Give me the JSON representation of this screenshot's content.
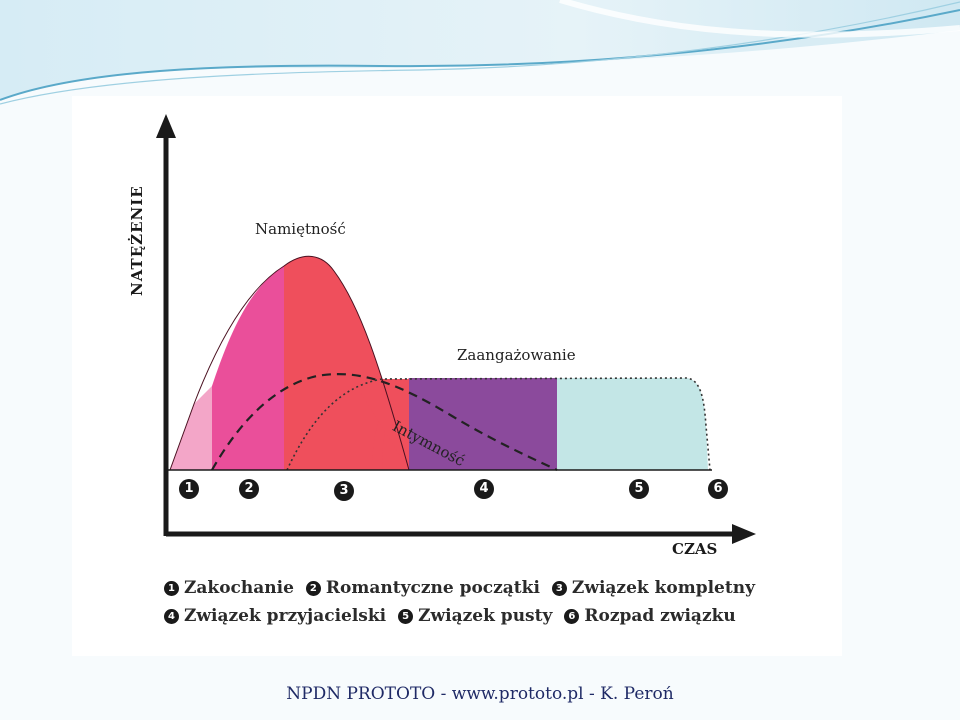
{
  "diagram": {
    "y_axis_label": "NATĘŻENIE",
    "x_axis_label": "CZAS",
    "curves": {
      "passion": "Namiętność",
      "commitment": "Zaangażowanie",
      "intimacy": "Intymność"
    },
    "markers": [
      "1",
      "2",
      "3",
      "4",
      "5",
      "6"
    ],
    "legend": [
      {
        "num": "1",
        "label": "Zakochanie"
      },
      {
        "num": "2",
        "label": "Romantyczne początki"
      },
      {
        "num": "3",
        "label": "Związek kompletny"
      },
      {
        "num": "4",
        "label": "Związek przyjacielski"
      },
      {
        "num": "5",
        "label": "Związek pusty"
      },
      {
        "num": "6",
        "label": "Rozpad związku"
      }
    ],
    "colors": {
      "stage1": "#f3a6c8",
      "stage2": "#ea4f9a",
      "stage3": "#ef4f5c",
      "stage4": "#8b4a9c",
      "stage5": "#c3e6e6",
      "axes": "#1a1a1a"
    }
  },
  "footer": {
    "text": "NPDN PROTOTO - www.prototo.pl - K. Peroń"
  }
}
